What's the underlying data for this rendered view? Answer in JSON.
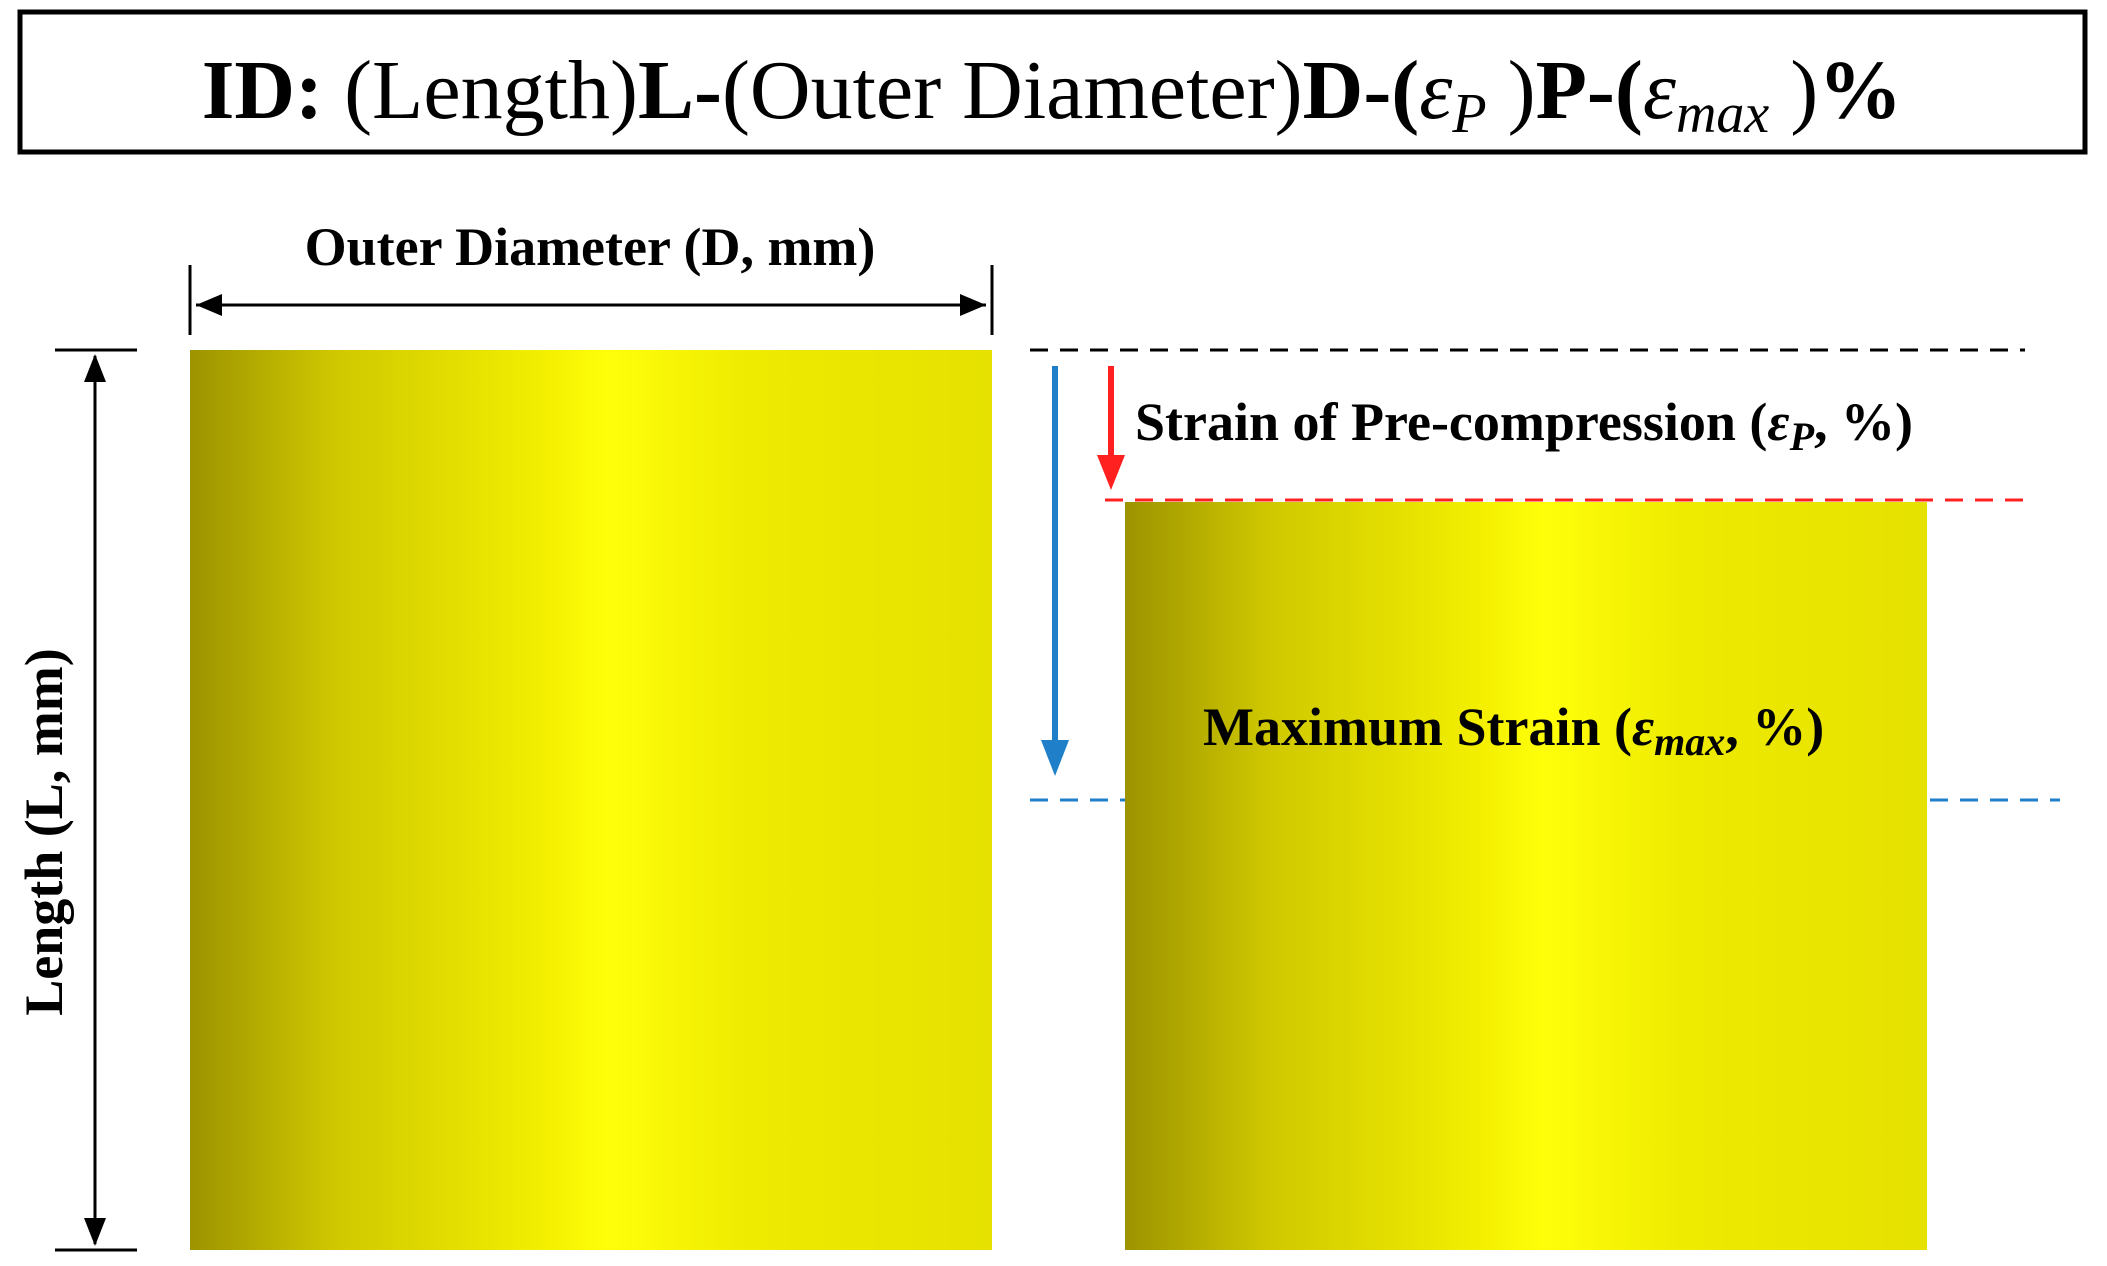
{
  "title": {
    "prefix": "ID:",
    "length_group": "(Length)",
    "length_code": "L-",
    "diameter_group": "(Outer Diameter)",
    "diameter_code": "D-",
    "open_paren_1": "(",
    "eps_symbol_1": "ε",
    "eps_sub_1": "P",
    "close_paren_1": " )",
    "pre_code": "P-",
    "open_paren_2": "(",
    "eps_symbol_2": "ε",
    "eps_sub_2": "max",
    "close_paren_2": " )",
    "percent": "%"
  },
  "labels": {
    "outer_diameter": "Outer Diameter (D, mm)",
    "length": "Length (L, mm)",
    "precomp_prefix": "Strain of Pre-compression (",
    "precomp_symbol": "ε",
    "precomp_sub": "P",
    "precomp_suffix": ", %)",
    "maxstrain_prefix": "Maximum Strain (",
    "maxstrain_symbol": "ε",
    "maxstrain_sub": "max",
    "maxstrain_suffix": ", %)"
  },
  "colors": {
    "specimen_dark": "#9c9300",
    "specimen_mid": "#e6e100",
    "specimen_bright": "#ffff0a",
    "precompression": "#ff2020",
    "max_strain": "#1f7fc8",
    "reference": "#000000"
  }
}
